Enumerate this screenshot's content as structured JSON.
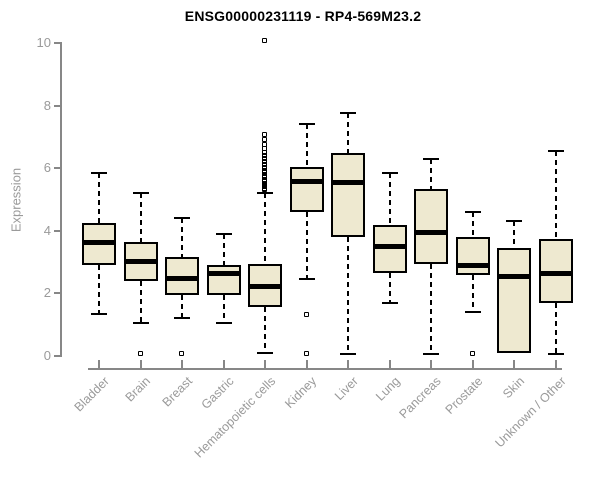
{
  "title": "ENSG00000231119 - RP4-569M23.2",
  "chart_data": {
    "type": "boxplot",
    "title": "ENSG00000231119 - RP4-569M23.2",
    "xlabel": "",
    "ylabel": "Expression",
    "ylim": [
      0,
      10
    ],
    "yticks": [
      0,
      2,
      4,
      6,
      8,
      10
    ],
    "grid": false,
    "x_label_rotation_deg": 45,
    "categories": [
      "Bladder",
      "Brain",
      "Breast",
      "Gastric",
      "Hematopoietic cells",
      "Kidney",
      "Liver",
      "Lung",
      "Pancreas",
      "Prostate",
      "Skin",
      "Unknown / Other"
    ],
    "series": [
      {
        "name": "Bladder",
        "whisker_low": 1.35,
        "q1": 2.9,
        "median": 3.65,
        "q3": 4.25,
        "whisker_high": 5.85,
        "outliers": []
      },
      {
        "name": "Brain",
        "whisker_low": 1.05,
        "q1": 2.4,
        "median": 3.05,
        "q3": 3.65,
        "whisker_high": 5.2,
        "outliers": [
          0.05
        ]
      },
      {
        "name": "Breast",
        "whisker_low": 1.2,
        "q1": 1.95,
        "median": 2.5,
        "q3": 3.15,
        "whisker_high": 4.4,
        "outliers": [
          0.05
        ]
      },
      {
        "name": "Gastric",
        "whisker_low": 1.05,
        "q1": 1.95,
        "median": 2.65,
        "q3": 2.9,
        "whisker_high": 3.9,
        "outliers": []
      },
      {
        "name": "Hematopoietic cells",
        "whisker_low": 0.1,
        "q1": 1.55,
        "median": 2.25,
        "q3": 2.95,
        "whisker_high": 5.2,
        "outliers": [
          5.3,
          5.35,
          5.4,
          5.45,
          5.5,
          5.55,
          5.6,
          5.7,
          5.75,
          5.85,
          5.9,
          6.0,
          6.1,
          6.2,
          6.3,
          6.4,
          6.5,
          6.6,
          6.75,
          6.9,
          7.05,
          10.05
        ]
      },
      {
        "name": "Kidney",
        "whisker_low": 2.45,
        "q1": 4.6,
        "median": 5.6,
        "q3": 6.05,
        "whisker_high": 7.4,
        "outliers": [
          1.3,
          0.05
        ]
      },
      {
        "name": "Liver",
        "whisker_low": 0.05,
        "q1": 3.8,
        "median": 5.55,
        "q3": 6.5,
        "whisker_high": 7.75,
        "outliers": []
      },
      {
        "name": "Lung",
        "whisker_low": 1.7,
        "q1": 2.65,
        "median": 3.5,
        "q3": 4.2,
        "whisker_high": 5.85,
        "outliers": []
      },
      {
        "name": "Pancreas",
        "whisker_low": 0.05,
        "q1": 2.95,
        "median": 3.95,
        "q3": 5.35,
        "whisker_high": 6.3,
        "outliers": []
      },
      {
        "name": "Prostate",
        "whisker_low": 1.4,
        "q1": 2.6,
        "median": 2.9,
        "q3": 3.8,
        "whisker_high": 4.6,
        "outliers": [
          0.05
        ]
      },
      {
        "name": "Skin",
        "whisker_low": 0.1,
        "q1": 0.1,
        "median": 2.55,
        "q3": 3.45,
        "whisker_high": 4.3,
        "outliers": []
      },
      {
        "name": "Unknown / Other",
        "whisker_low": 0.05,
        "q1": 1.7,
        "median": 2.65,
        "q3": 3.75,
        "whisker_high": 6.55,
        "outliers": []
      }
    ],
    "colors": {
      "box_fill": "#EEE9D0",
      "box_border": "#000000",
      "median": "#000000",
      "whisker": "#000000",
      "axis": "#878787",
      "tick_label": "#9a9a9a",
      "title": "#000000",
      "background": "#ffffff"
    }
  }
}
